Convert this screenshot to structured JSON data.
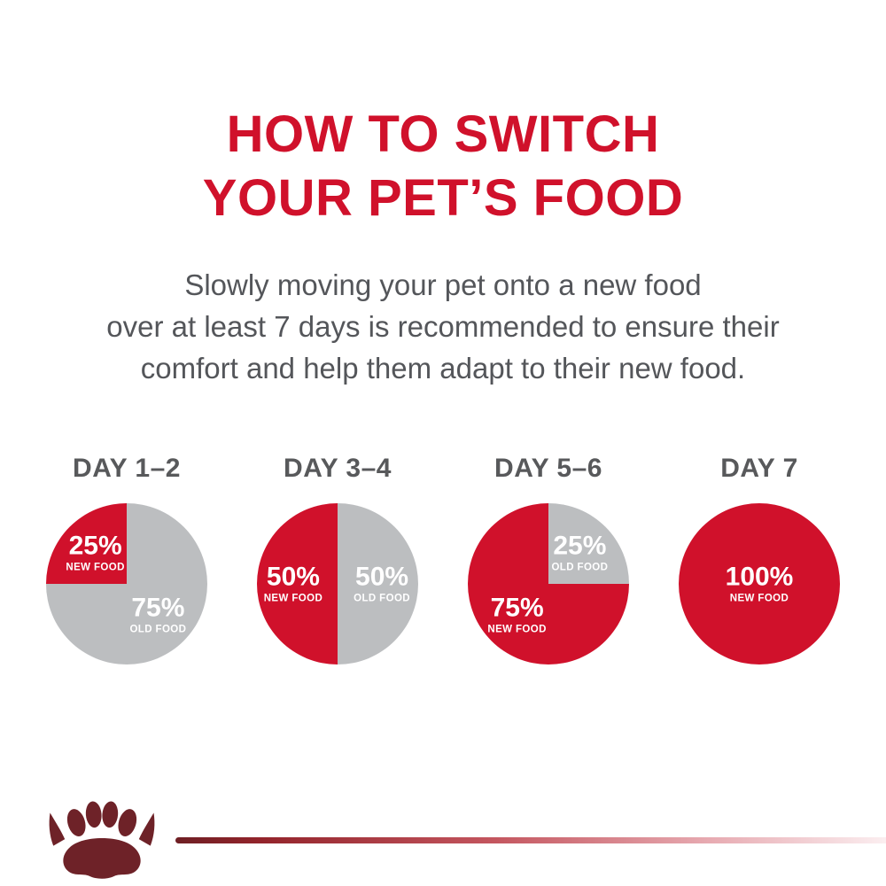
{
  "title": {
    "line1": "HOW TO SWITCH",
    "line2": "YOUR PET’S FOOD"
  },
  "subtitle": {
    "line1": "Slowly moving your pet onto a new food",
    "line2": "over at least 7 days is recommended to ensure their",
    "line3": "comfort and help them adapt to their new food."
  },
  "colors": {
    "accent_red": "#d0112b",
    "pie_red": "#d0112b",
    "pie_gray": "#bcbec0",
    "text_gray": "#54565a",
    "day_label_gray": "#58595b",
    "logo_red": "#6e2228"
  },
  "chart_data": [
    {
      "type": "pie",
      "title": "DAY 1–2",
      "rotation": 270,
      "legend_position": "inside",
      "slices": [
        {
          "label": "NEW FOOD",
          "value": 25,
          "display": "25%",
          "color": "#d0112b"
        },
        {
          "label": "OLD FOOD",
          "value": 75,
          "display": "75%",
          "color": "#bcbec0"
        }
      ]
    },
    {
      "type": "pie",
      "title": "DAY 3–4",
      "rotation": 180,
      "legend_position": "inside",
      "slices": [
        {
          "label": "NEW FOOD",
          "value": 50,
          "display": "50%",
          "color": "#d0112b"
        },
        {
          "label": "OLD FOOD",
          "value": 50,
          "display": "50%",
          "color": "#bcbec0"
        }
      ]
    },
    {
      "type": "pie",
      "title": "DAY 5–6",
      "rotation": 90,
      "legend_position": "inside",
      "slices": [
        {
          "label": "NEW FOOD",
          "value": 75,
          "display": "75%",
          "color": "#d0112b"
        },
        {
          "label": "OLD FOOD",
          "value": 25,
          "display": "25%",
          "color": "#bcbec0"
        }
      ]
    },
    {
      "type": "pie",
      "title": "DAY 7",
      "rotation": 0,
      "legend_position": "inside",
      "slices": [
        {
          "label": "NEW FOOD",
          "value": 100,
          "display": "100%",
          "color": "#d0112b"
        }
      ]
    }
  ],
  "logo": {
    "name": "paw-crown logo"
  }
}
